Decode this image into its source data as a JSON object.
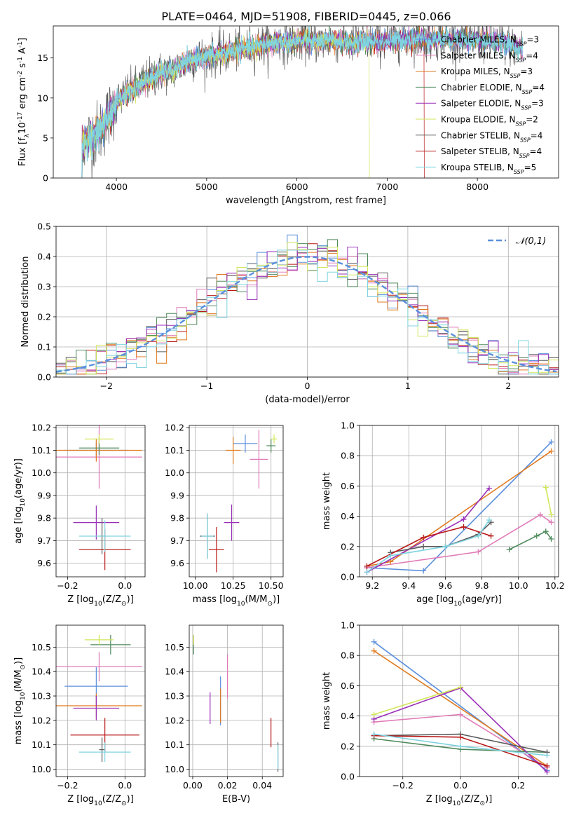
{
  "figure": {
    "title": "PLATE=0464, MJD=51908, FIBERID=0445, z=0.066",
    "models": [
      {
        "name": "Chabrier MILES, N$_{SSP}$=3",
        "label": "Chabrier MILES, N",
        "sub": "SSP",
        "n": "=3",
        "color": "#5b8fdc"
      },
      {
        "name": "Salpeter MILES, N$_{SSP}$=4",
        "label": "Salpeter MILES, N",
        "sub": "SSP",
        "n": "=4",
        "color": "#e07bb8"
      },
      {
        "name": "Kroupa MILES, N$_{SSP}$=3",
        "label": "Kroupa MILES, N",
        "sub": "SSP",
        "n": "=3",
        "color": "#e07a1f"
      },
      {
        "name": "Chabrier ELODIE, N$_{SSP}$=4",
        "label": "Chabrier ELODIE, N",
        "sub": "SSP",
        "n": "=4",
        "color": "#4f8a5c"
      },
      {
        "name": "Salpeter ELODIE, N$_{SSP}$=3",
        "label": "Salpeter ELODIE, N",
        "sub": "SSP",
        "n": "=3",
        "color": "#9a2fb8"
      },
      {
        "name": "Kroupa ELODIE, N$_{SSP}$=2",
        "label": "Kroupa ELODIE, N",
        "sub": "SSP",
        "n": "=2",
        "color": "#d2e65a"
      },
      {
        "name": "Chabrier STELIB, N$_{SSP}$=4",
        "label": "Chabrier STELIB, N",
        "sub": "SSP",
        "n": "=4",
        "color": "#5a5a5a"
      },
      {
        "name": "Salpeter STELIB, N$_{SSP}$=4",
        "label": "Salpeter STELIB, N",
        "sub": "SSP",
        "n": "=4",
        "color": "#b81818"
      },
      {
        "name": "Kroupa STELIB, N$_{SSP}$=5",
        "label": "Kroupa STELIB, N",
        "sub": "SSP",
        "n": "=5",
        "color": "#7fd4e0"
      }
    ]
  },
  "chart_data": [
    {
      "id": "spectrum",
      "type": "line",
      "title": "PLATE=0464, MJD=51908, FIBERID=0445, z=0.066",
      "xlabel": "wavelength [Angstrom, rest frame]",
      "ylabel": "Flux [f$_\\lambda$10$^{-17}$ erg cm$^{-2}$ s$^{-1}$ A$^{-1}$]",
      "xlim": [
        3300,
        8900
      ],
      "ylim": [
        0,
        19
      ],
      "xticks": [
        4000,
        5000,
        6000,
        7000,
        8000
      ],
      "yticks": [
        0,
        5,
        10,
        15
      ],
      "grid": false,
      "legend": "right",
      "data_x": [
        3580,
        3700,
        3800,
        3900,
        4000,
        4100,
        4200,
        4300,
        4400,
        4500,
        4600,
        4700,
        4800,
        4900,
        5000,
        5100,
        5200,
        5300,
        5400,
        5500,
        5600,
        5700,
        5800,
        5900,
        6000,
        6100,
        6200,
        6300,
        6400,
        6500,
        6600,
        6700,
        6800,
        6900,
        7000,
        7100,
        7200,
        7300,
        7400,
        7500,
        7600,
        7700,
        7800,
        7900,
        8000,
        8100,
        8200,
        8300,
        8400,
        8500
      ],
      "data_y": [
        3.8,
        5.0,
        5.6,
        7.5,
        9.5,
        10.5,
        11.2,
        12.0,
        12.6,
        13.2,
        13.3,
        13.9,
        14.6,
        15.0,
        15.2,
        15.4,
        15.6,
        15.9,
        16.1,
        16.4,
        16.6,
        16.8,
        17.0,
        16.9,
        17.1,
        17.2,
        17.0,
        17.1,
        17.2,
        17.0,
        16.8,
        17.0,
        17.1,
        17.0,
        17.1,
        17.2,
        17.3,
        17.4,
        17.4,
        17.3,
        17.4,
        17.3,
        17.4,
        17.2,
        17.2,
        17.1,
        17.0,
        16.8,
        16.5,
        16.1
      ]
    },
    {
      "id": "residuals",
      "type": "histogram",
      "xlabel": "(data-model)/error",
      "ylabel": "Normed distribution",
      "xlim": [
        -2.5,
        2.5
      ],
      "ylim": [
        0,
        0.5
      ],
      "xticks": [
        -2,
        -1,
        0,
        1,
        2
      ],
      "yticks": [
        0.0,
        0.1,
        0.2,
        0.3,
        0.4,
        0.5
      ],
      "grid": true,
      "legend": "top-right",
      "reference_label": "$\\mathcal{N}(0,1)$",
      "bin_width": 0.1
    },
    {
      "id": "age_vs_Z",
      "type": "errorbar",
      "xlabel": "Z [log$_{10}$(Z/Z$_\\odot$)]",
      "ylabel": "age  [log$_{10}$(age/yr)]",
      "xlim": [
        -0.24,
        0.07
      ],
      "ylim": [
        9.54,
        10.21
      ],
      "xticks": [
        -0.2,
        0.0
      ],
      "yticks": [
        9.6,
        9.7,
        9.8,
        9.9,
        10.0,
        10.1,
        10.2
      ],
      "grid": true,
      "points": [
        {
          "model": 0,
          "x": -0.1,
          "xerr": 0.11,
          "y": 10.1,
          "yerr": 0.035
        },
        {
          "model": 1,
          "x": -0.09,
          "xerr": 0.15,
          "y": 10.07,
          "yerr": 0.14
        },
        {
          "model": 2,
          "x": -0.1,
          "xerr": 0.16,
          "y": 10.1,
          "yerr": 0.05
        },
        {
          "model": 3,
          "x": -0.09,
          "xerr": 0.07,
          "y": 10.11,
          "yerr": 0.03
        },
        {
          "model": 4,
          "x": -0.1,
          "xerr": 0.08,
          "y": 9.78,
          "yerr": 0.075
        },
        {
          "model": 5,
          "x": -0.09,
          "xerr": 0.05,
          "y": 10.15,
          "yerr": 0.02
        },
        {
          "model": 6,
          "x": -0.08,
          "xerr": 0.01,
          "y": 9.72,
          "yerr": 0.08
        },
        {
          "model": 7,
          "x": -0.07,
          "xerr": 0.09,
          "y": 9.66,
          "yerr": 0.09
        },
        {
          "model": 8,
          "x": -0.07,
          "xerr": 0.09,
          "y": 9.72,
          "yerr": 0.07
        }
      ]
    },
    {
      "id": "age_vs_mass",
      "type": "errorbar",
      "xlabel": "mass [log$_{10}$(M/M$_\\odot$)]",
      "xlim": [
        9.96,
        10.58
      ],
      "ylim": [
        9.54,
        10.21
      ],
      "xticks": [
        10.0,
        10.25,
        10.5
      ],
      "yticks": [
        9.6,
        9.7,
        9.8,
        9.9,
        10.0,
        10.1,
        10.2
      ],
      "grid": true,
      "points": [
        {
          "model": 0,
          "x": 10.33,
          "xerr": 0.08,
          "y": 10.13,
          "yerr": 0.04
        },
        {
          "model": 1,
          "x": 10.42,
          "xerr": 0.06,
          "y": 10.06,
          "yerr": 0.13
        },
        {
          "model": 2,
          "x": 10.25,
          "xerr": 0.05,
          "y": 10.1,
          "yerr": 0.06
        },
        {
          "model": 3,
          "x": 10.5,
          "xerr": 0.03,
          "y": 10.12,
          "yerr": 0.03
        },
        {
          "model": 4,
          "x": 10.24,
          "xerr": 0.05,
          "y": 9.78,
          "yerr": 0.08
        },
        {
          "model": 5,
          "x": 10.52,
          "xerr": 0.02,
          "y": 10.15,
          "yerr": 0.02
        },
        {
          "model": 6,
          "x": 10.08,
          "xerr": 0.05,
          "y": 9.72,
          "yerr": 0.1
        },
        {
          "model": 7,
          "x": 10.14,
          "xerr": 0.05,
          "y": 9.66,
          "yerr": 0.1
        },
        {
          "model": 8,
          "x": 10.08,
          "xerr": 0.04,
          "y": 9.72,
          "yerr": 0.1
        }
      ]
    },
    {
      "id": "weight_vs_age",
      "type": "line",
      "xlabel": "age  [log$_{10}$(age/yr)]",
      "ylabel": "mass weight",
      "xlim": [
        9.13,
        10.22
      ],
      "ylim": [
        0,
        1.0
      ],
      "xticks": [
        9.2,
        9.4,
        9.6,
        9.8,
        10.0,
        10.2
      ],
      "yticks": [
        0.0,
        0.2,
        0.4,
        0.6,
        0.8,
        1.0
      ],
      "grid": true,
      "series": [
        {
          "model": 0,
          "x": [
            9.17,
            9.48,
            10.18
          ],
          "y": [
            0.06,
            0.04,
            0.89
          ]
        },
        {
          "model": 1,
          "x": [
            9.17,
            9.78,
            10.12,
            10.18
          ],
          "y": [
            0.06,
            0.165,
            0.41,
            0.36
          ]
        },
        {
          "model": 2,
          "x": [
            9.17,
            9.3,
            10.18
          ],
          "y": [
            0.07,
            0.1,
            0.83
          ]
        },
        {
          "model": 3,
          "x": [
            9.95,
            10.1,
            10.15,
            10.18
          ],
          "y": [
            0.18,
            0.27,
            0.3,
            0.25
          ]
        },
        {
          "model": 4,
          "x": [
            9.17,
            9.7,
            9.84
          ],
          "y": [
            0.03,
            0.38,
            0.585
          ]
        },
        {
          "model": 5,
          "x": [
            10.15,
            10.18
          ],
          "y": [
            0.59,
            0.41
          ]
        },
        {
          "model": 6,
          "x": [
            9.3,
            9.48,
            9.6,
            9.78,
            9.85
          ],
          "y": [
            0.16,
            0.2,
            0.2,
            0.28,
            0.36
          ]
        },
        {
          "model": 7,
          "x": [
            9.17,
            9.48,
            9.7,
            9.85
          ],
          "y": [
            0.07,
            0.26,
            0.33,
            0.27
          ]
        },
        {
          "model": 8,
          "x": [
            9.17,
            9.3,
            9.6,
            9.78,
            9.84
          ],
          "y": [
            0.03,
            0.14,
            0.2,
            0.27,
            0.375
          ]
        }
      ]
    },
    {
      "id": "mass_vs_Z",
      "type": "errorbar",
      "xlabel": "Z [log$_{10}$(Z/Z$_\\odot$)]",
      "ylabel": "mass [log$_{10}$(M/M$_\\odot$)]",
      "xlim": [
        -0.24,
        0.07
      ],
      "ylim": [
        9.97,
        10.59
      ],
      "xticks": [
        -0.2,
        0.0
      ],
      "yticks": [
        10.0,
        10.1,
        10.2,
        10.3,
        10.4,
        10.5
      ],
      "grid": true,
      "points": [
        {
          "model": 0,
          "x": -0.1,
          "xerr": 0.11,
          "y": 10.34,
          "yerr": 0.08
        },
        {
          "model": 1,
          "x": -0.09,
          "xerr": 0.15,
          "y": 10.42,
          "yerr": 0.06
        },
        {
          "model": 2,
          "x": -0.1,
          "xerr": 0.16,
          "y": 10.26,
          "yerr": 0.05
        },
        {
          "model": 3,
          "x": -0.05,
          "xerr": 0.07,
          "y": 10.51,
          "yerr": 0.04
        },
        {
          "model": 4,
          "x": -0.1,
          "xerr": 0.08,
          "y": 10.25,
          "yerr": 0.05
        },
        {
          "model": 5,
          "x": -0.09,
          "xerr": 0.05,
          "y": 10.53,
          "yerr": 0.02
        },
        {
          "model": 6,
          "x": -0.08,
          "xerr": 0.01,
          "y": 10.08,
          "yerr": 0.05
        },
        {
          "model": 7,
          "x": -0.07,
          "xerr": 0.12,
          "y": 10.14,
          "yerr": 0.07
        },
        {
          "model": 8,
          "x": -0.07,
          "xerr": 0.09,
          "y": 10.07,
          "yerr": 0.04
        }
      ]
    },
    {
      "id": "mass_vs_EBV",
      "type": "errorbar",
      "xlabel": "E(B-V)",
      "xlim": [
        -0.002,
        0.052
      ],
      "ylim": [
        9.97,
        10.59
      ],
      "xticks": [
        0.0,
        0.02,
        0.04
      ],
      "yticks": [
        10.0,
        10.1,
        10.2,
        10.3,
        10.4,
        10.5
      ],
      "grid": true,
      "points": [
        {
          "model": 0,
          "x": 0.016,
          "xerr": 0.0,
          "y": 10.28,
          "yerr": 0.1
        },
        {
          "model": 1,
          "x": 0.02,
          "xerr": 0.0,
          "y": 10.38,
          "yerr": 0.09
        },
        {
          "model": 2,
          "x": 0.016,
          "xerr": 0.0,
          "y": 10.26,
          "yerr": 0.07
        },
        {
          "model": 3,
          "x": 0.0005,
          "xerr": 0.0,
          "y": 10.51,
          "yerr": 0.04
        },
        {
          "model": 4,
          "x": 0.01,
          "xerr": 0.0,
          "y": 10.25,
          "yerr": 0.065
        },
        {
          "model": 5,
          "x": 0.0005,
          "xerr": 0.0,
          "y": 10.53,
          "yerr": 0.02
        },
        {
          "model": 6,
          "x": 0.049,
          "xerr": 0.0,
          "y": 10.05,
          "yerr": 0.06
        },
        {
          "model": 7,
          "x": 0.045,
          "xerr": 0.0,
          "y": 10.15,
          "yerr": 0.06
        },
        {
          "model": 8,
          "x": 0.049,
          "xerr": 0.0,
          "y": 10.05,
          "yerr": 0.05
        }
      ]
    },
    {
      "id": "weight_vs_Z",
      "type": "line",
      "xlabel": "Z [log$_{10}$(Z/Z$_\\odot$)]",
      "ylabel": "mass weight",
      "xlim": [
        -0.35,
        0.34
      ],
      "ylim": [
        0,
        1.0
      ],
      "xticks": [
        -0.2,
        0.0,
        0.2
      ],
      "yticks": [
        0.0,
        0.2,
        0.4,
        0.6,
        0.8,
        1.0
      ],
      "grid": true,
      "series": [
        {
          "model": 0,
          "x": [
            -0.3,
            0.3
          ],
          "y": [
            0.89,
            0.04
          ]
        },
        {
          "model": 1,
          "x": [
            -0.3,
            0.0,
            0.3
          ],
          "y": [
            0.36,
            0.41,
            0.06
          ]
        },
        {
          "model": 2,
          "x": [
            -0.3,
            0.3
          ],
          "y": [
            0.83,
            0.07
          ]
        },
        {
          "model": 3,
          "x": [
            -0.3,
            0.0,
            0.3
          ],
          "y": [
            0.25,
            0.18,
            0.16
          ]
        },
        {
          "model": 4,
          "x": [
            -0.3,
            0.0,
            0.3
          ],
          "y": [
            0.38,
            0.585,
            0.03
          ]
        },
        {
          "model": 5,
          "x": [
            -0.3,
            0.0
          ],
          "y": [
            0.41,
            0.59
          ]
        },
        {
          "model": 6,
          "x": [
            -0.3,
            0.0,
            0.3
          ],
          "y": [
            0.27,
            0.28,
            0.16
          ]
        },
        {
          "model": 7,
          "x": [
            -0.3,
            0.0,
            0.3
          ],
          "y": [
            0.27,
            0.26,
            0.07
          ]
        },
        {
          "model": 8,
          "x": [
            -0.3,
            0.0,
            0.3
          ],
          "y": [
            0.28,
            0.2,
            0.14
          ]
        }
      ]
    }
  ]
}
